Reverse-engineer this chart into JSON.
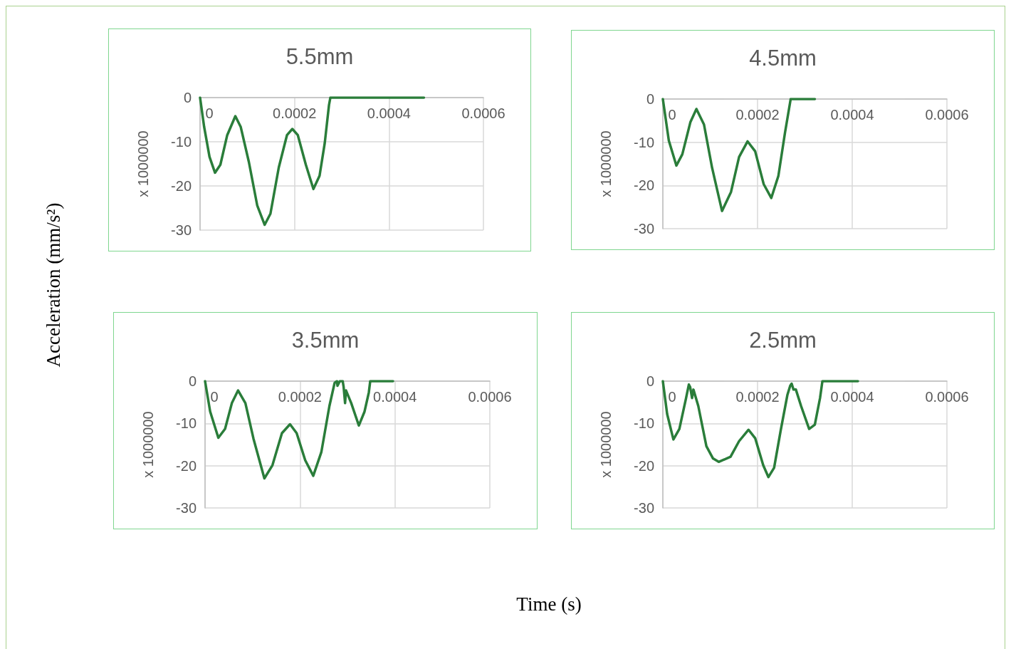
{
  "chart_data": [
    {
      "type": "line",
      "title": "5.5mm",
      "ylabel": "x 1000000",
      "annotations": [
        "Acceleration (mm/s²)",
        "Time (s)"
      ],
      "xlim": [
        0,
        0.0006
      ],
      "xticks": [
        0,
        0.0002,
        0.0004,
        0.0006
      ],
      "ylim": [
        -30,
        0
      ],
      "yticks": [
        0,
        -10,
        -20,
        -30
      ],
      "grid": true,
      "marker": "none",
      "line_style": "solid",
      "series": [
        {
          "color": "#2a7d3a",
          "x": [
            0,
            8.6e-06,
            2e-05,
            3.16e-05,
            4.3e-05,
            5.75e-05,
            7.47e-05,
            8.6e-05,
            0.0001034,
            0.000121,
            0.0001368,
            0.000149,
            0.0001667,
            0.000184,
            0.0001954,
            0.000207,
            0.000224,
            0.00024,
            0.000253,
            0.000264,
            0.000273,
            0.0002759,
            0.000474
          ],
          "values": [
            0,
            -6.6,
            -13.4,
            -17,
            -15.2,
            -8.5,
            -4.2,
            -6.6,
            -14.6,
            -24.4,
            -28.8,
            -26.3,
            -15.8,
            -8.5,
            -7.1,
            -8.5,
            -15.2,
            -20.7,
            -17.7,
            -10.3,
            -1.7,
            0,
            0
          ]
        }
      ]
    },
    {
      "type": "line",
      "title": "4.5mm",
      "ylabel": "x 1000000",
      "xlim": [
        0,
        0.0006
      ],
      "xticks": [
        0,
        0.0002,
        0.0004,
        0.0006
      ],
      "ylim": [
        -30,
        0
      ],
      "yticks": [
        0,
        -10,
        -20,
        -30
      ],
      "grid": true,
      "marker": "none",
      "line_style": "solid",
      "series": [
        {
          "color": "#2a7d3a",
          "x": [
            0,
            1.26e-05,
            2.86e-05,
            4.11e-05,
            5.83e-05,
            7.09e-05,
            8.69e-05,
            0.000104,
            0.000125,
            0.000144,
            0.000161,
            0.000179,
            0.000195,
            0.000213,
            0.000229,
            0.000244,
            0.000258,
            0.00027,
            0.000321
          ],
          "values": [
            0,
            -9.6,
            -15.4,
            -12.8,
            -5.3,
            -2.3,
            -5.9,
            -15.9,
            -25.9,
            -21.5,
            -13.4,
            -9.8,
            -12.1,
            -19.7,
            -22.9,
            -17.8,
            -7.8,
            0,
            0
          ]
        }
      ]
    },
    {
      "type": "line",
      "title": "3.5mm",
      "ylabel": "x 1000000",
      "xlim": [
        0,
        0.0006
      ],
      "xticks": [
        0,
        0.0002,
        0.0004,
        0.0006
      ],
      "ylim": [
        -30,
        0
      ],
      "yticks": [
        0,
        -10,
        -20,
        -30
      ],
      "grid": true,
      "marker": "none",
      "line_style": "solid",
      "series": [
        {
          "color": "#2a7d3a",
          "x": [
            0,
            1.08e-05,
            2.8e-05,
            4.22e-05,
            5.65e-05,
            6.96e-05,
            8.5e-05,
            0.000102,
            0.000125,
            0.000142,
            0.000162,
            0.000179,
            0.000193,
            0.000211,
            0.000228,
            0.000245,
            0.000262,
            0.000273,
            0.000278,
            0.000279,
            0.000284,
            0.00029,
            0.000292,
            0.000295,
            0.000297,
            0.000308,
            0.000324,
            0.000336,
            0.000345,
            0.000348,
            0.000396
          ],
          "values": [
            0,
            -7.2,
            -13.4,
            -11.3,
            -5.2,
            -2.2,
            -5.2,
            -13.6,
            -23,
            -19.9,
            -12.3,
            -10.2,
            -12.3,
            -18.7,
            -22.4,
            -16.8,
            -5.9,
            -0.4,
            0,
            -1.1,
            0,
            0,
            -1.4,
            -5.2,
            -2.2,
            -5.2,
            -10.5,
            -7.2,
            -2.7,
            0,
            0
          ]
        }
      ]
    },
    {
      "type": "line",
      "title": "2.5mm",
      "ylabel": "x 1000000",
      "xlim": [
        0,
        0.0006
      ],
      "xticks": [
        0,
        0.0002,
        0.0004,
        0.0006
      ],
      "ylim": [
        -30,
        0
      ],
      "yticks": [
        0,
        -10,
        -20,
        -30
      ],
      "grid": true,
      "marker": "none",
      "line_style": "solid",
      "series": [
        {
          "color": "#2a7d3a",
          "x": [
            0,
            9.1e-06,
            2.23e-05,
            3.49e-05,
            4.91e-05,
            5.49e-05,
            5.77e-05,
            6.17e-05,
            6.46e-05,
            7.49e-05,
            9.2e-05,
            0.000106,
            0.000118,
            0.000143,
            0.000161,
            0.000181,
            0.000195,
            0.000212,
            0.000223,
            0.000235,
            0.000249,
            0.000263,
            0.000269,
            0.000272,
            0.000276,
            0.000281,
            0.000292,
            0.000309,
            0.000321,
            0.000332,
            0.000337,
            0.000412
          ],
          "values": [
            0,
            -7.8,
            -13.8,
            -11.3,
            -4,
            -0.8,
            -1.4,
            -4,
            -2,
            -5.9,
            -15.4,
            -18.3,
            -19.1,
            -17.9,
            -14.2,
            -11.5,
            -13.5,
            -19.9,
            -22.7,
            -20.5,
            -11.6,
            -3.3,
            -1.1,
            -0.6,
            -2,
            -2,
            -5.9,
            -11.3,
            -10.3,
            -4,
            0,
            0
          ]
        }
      ]
    }
  ]
}
